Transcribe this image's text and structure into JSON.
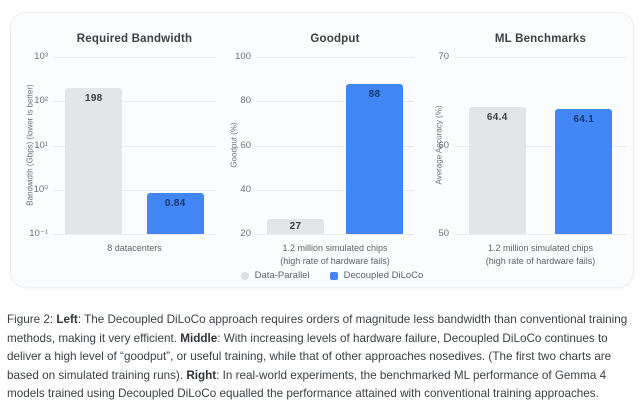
{
  "chart_data": [
    {
      "type": "bar",
      "title": "Required Bandwidth",
      "ylabel": "Bandwidth (Gbps) (lower is better)",
      "yscale": "log",
      "ylim": [
        0.1,
        1000
      ],
      "yticks": [
        {
          "label": "10³",
          "value": 1000
        },
        {
          "label": "10²",
          "value": 100
        },
        {
          "label": "10¹",
          "value": 10
        },
        {
          "label": "10⁰",
          "value": 1
        },
        {
          "label": "10⁻¹",
          "value": 0.1
        }
      ],
      "grid": true,
      "category_lines": [
        "8 datacenters"
      ],
      "series": [
        {
          "name": "Data-Parallel",
          "value": 198,
          "value_label": "198",
          "color": "#E3E5E9",
          "label_color": "#3C4043"
        },
        {
          "name": "Decoupled DiLoCo",
          "value": 0.84,
          "value_label": "0.84",
          "color": "#4285F4",
          "label_color": "#17376B"
        }
      ]
    },
    {
      "type": "bar",
      "title": "Goodput",
      "ylabel": "Goodput (%)",
      "yscale": "linear",
      "ylim": [
        20,
        100
      ],
      "yticks": [
        {
          "label": "100",
          "value": 100
        },
        {
          "label": "80",
          "value": 80
        },
        {
          "label": "60",
          "value": 60
        },
        {
          "label": "40",
          "value": 40
        },
        {
          "label": "20",
          "value": 20
        }
      ],
      "grid": true,
      "category_lines": [
        "1.2 million simulated chips",
        "(high rate of hardware fails)"
      ],
      "series": [
        {
          "name": "Data-Parallel",
          "value": 27,
          "value_label": "27",
          "color": "#E3E5E9",
          "label_color": "#3C4043"
        },
        {
          "name": "Decoupled DiLoCo",
          "value": 88,
          "value_label": "88",
          "color": "#4285F4",
          "label_color": "#17376B"
        }
      ]
    },
    {
      "type": "bar",
      "title": "ML Benchmarks",
      "ylabel": "Average Accuracy (%)",
      "yscale": "linear",
      "ylim": [
        50,
        70
      ],
      "yticks": [
        {
          "label": "70",
          "value": 70
        },
        {
          "label": "60",
          "value": 60
        },
        {
          "label": "50",
          "value": 50
        }
      ],
      "grid": true,
      "category_lines": [
        "1.2 million simulated chips",
        "(high rate of hardware fails)"
      ],
      "series": [
        {
          "name": "Data-Parallel",
          "value": 64.4,
          "value_label": "64.4",
          "color": "#E3E5E9",
          "label_color": "#3C4043"
        },
        {
          "name": "Decoupled DiLoCo",
          "value": 64.1,
          "value_label": "64.1",
          "color": "#4285F4",
          "label_color": "#17376B"
        }
      ]
    }
  ],
  "legend": {
    "items": [
      {
        "label": "Data-Parallel",
        "color": "#DDDFE4",
        "shape": "circle"
      },
      {
        "label": "Decoupled DiLoCo",
        "color": "#4285F4",
        "shape": "rounded-square"
      }
    ]
  },
  "caption": {
    "segments": [
      {
        "text": "Figure 2: ",
        "bold": false
      },
      {
        "text": "Left",
        "bold": true
      },
      {
        "text": ": The Decoupled DiLoCo approach requires orders of magnitude less bandwidth than conventional training methods, making it very efficient. ",
        "bold": false
      },
      {
        "text": "Middle",
        "bold": true
      },
      {
        "text": ": With increasing levels of hardware failure, Decoupled DiLoCo continues to deliver a high level of “goodput”, or useful training, while that of other approaches nosedives. (The first two charts are based on simulated training runs). ",
        "bold": false
      },
      {
        "text": "Right",
        "bold": true
      },
      {
        "text": ": In real-world experiments, the benchmarked ML performance of Gemma 4 models trained using Decoupled DiLoCo equalled the performance attained with conventional training approaches.",
        "bold": false
      }
    ]
  }
}
